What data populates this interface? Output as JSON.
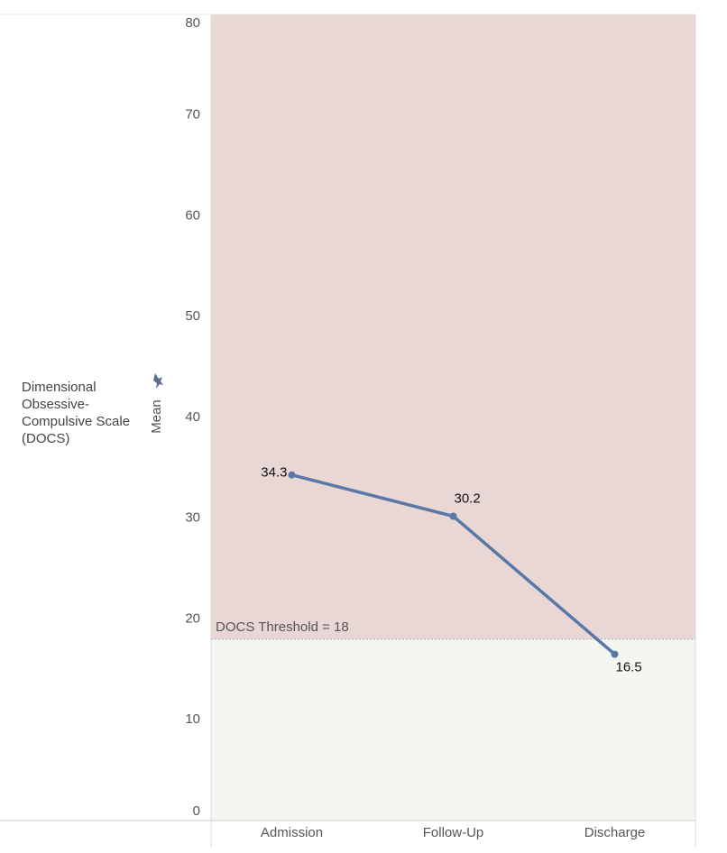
{
  "chart_data": {
    "type": "line",
    "row_header": "Dimensional Obsessive-Compulsive Scale (DOCS)",
    "y_label": "Mean",
    "categories": [
      "Admission",
      "Follow-Up",
      "Discharge"
    ],
    "series": [
      {
        "name": "Mean",
        "color": "#5a78a6",
        "values": [
          34.3,
          30.2,
          16.5
        ]
      }
    ],
    "ylim": [
      0,
      80
    ],
    "yticks": [
      0,
      10,
      20,
      30,
      40,
      50,
      60,
      70,
      80
    ],
    "reference_line": {
      "value": 18,
      "label": "DOCS Threshold = 18",
      "above_color": "#e9d7d6",
      "below_color": "#f4f7ef"
    }
  }
}
